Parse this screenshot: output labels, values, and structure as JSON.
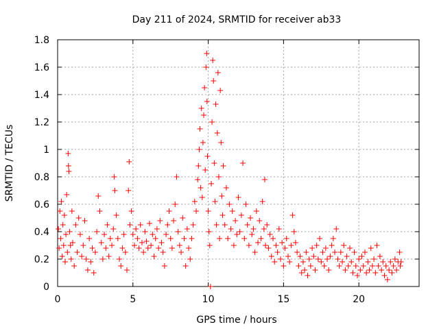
{
  "chart_data": {
    "type": "scatter",
    "title": "Day 211 of 2024, SRMTID for receiver ab33",
    "xlabel": "GPS time / hours",
    "ylabel": "SRMTID / TECUs",
    "xlim": [
      0,
      24
    ],
    "ylim": [
      0,
      1.8
    ],
    "xticks": [
      0,
      5,
      10,
      15,
      20
    ],
    "xtick_labels": [
      "0",
      "5",
      "10",
      "15",
      "20"
    ],
    "yticks": [
      0,
      0.2,
      0.4,
      0.6,
      0.8,
      1.0,
      1.2,
      1.4,
      1.6,
      1.8
    ],
    "ytick_labels": [
      "0",
      "0.2",
      "0.4",
      "0.6",
      "0.8",
      "1",
      "1.2",
      "1.4",
      "1.6",
      "1.8"
    ],
    "grid": true,
    "marker": "+",
    "series_color": "#ff0000",
    "series": [
      {
        "name": "SRMTID",
        "points": [
          [
            0.05,
            0.42
          ],
          [
            0.1,
            0.28
          ],
          [
            0.15,
            0.55
          ],
          [
            0.2,
            0.35
          ],
          [
            0.25,
            0.62
          ],
          [
            0.3,
            0.22
          ],
          [
            0.35,
            0.45
          ],
          [
            0.4,
            0.3
          ],
          [
            0.45,
            0.52
          ],
          [
            0.5,
            0.18
          ],
          [
            0.55,
            0.38
          ],
          [
            0.6,
            0.67
          ],
          [
            0.65,
            0.25
          ],
          [
            0.7,
            0.97
          ],
          [
            0.72,
            0.88
          ],
          [
            0.75,
            0.84
          ],
          [
            0.8,
            0.4
          ],
          [
            0.85,
            0.3
          ],
          [
            0.9,
            0.2
          ],
          [
            0.95,
            0.55
          ],
          [
            1.0,
            0.32
          ],
          [
            1.1,
            0.15
          ],
          [
            1.2,
            0.45
          ],
          [
            1.3,
            0.25
          ],
          [
            1.4,
            0.5
          ],
          [
            1.5,
            0.38
          ],
          [
            1.6,
            0.22
          ],
          [
            1.7,
            0.3
          ],
          [
            1.8,
            0.48
          ],
          [
            1.9,
            0.2
          ],
          [
            2.0,
            0.12
          ],
          [
            2.1,
            0.35
          ],
          [
            2.2,
            0.18
          ],
          [
            2.3,
            0.28
          ],
          [
            2.4,
            0.1
          ],
          [
            2.5,
            0.25
          ],
          [
            2.6,
            0.4
          ],
          [
            2.7,
            0.66
          ],
          [
            2.8,
            0.55
          ],
          [
            2.9,
            0.32
          ],
          [
            3.0,
            0.2
          ],
          [
            3.1,
            0.38
          ],
          [
            3.2,
            0.28
          ],
          [
            3.3,
            0.45
          ],
          [
            3.4,
            0.22
          ],
          [
            3.5,
            0.35
          ],
          [
            3.6,
            0.3
          ],
          [
            3.7,
            0.42
          ],
          [
            3.8,
            0.7
          ],
          [
            3.9,
            0.52
          ],
          [
            3.75,
            0.8
          ],
          [
            4.0,
            0.35
          ],
          [
            4.1,
            0.2
          ],
          [
            4.2,
            0.15
          ],
          [
            4.3,
            0.28
          ],
          [
            4.4,
            0.38
          ],
          [
            4.5,
            0.25
          ],
          [
            4.6,
            0.12
          ],
          [
            4.7,
            0.7
          ],
          [
            4.75,
            0.91
          ],
          [
            4.8,
            0.45
          ],
          [
            4.9,
            0.55
          ],
          [
            5.0,
            0.38
          ],
          [
            5.1,
            0.3
          ],
          [
            5.2,
            0.42
          ],
          [
            5.3,
            0.35
          ],
          [
            5.4,
            0.28
          ],
          [
            5.5,
            0.45
          ],
          [
            5.6,
            0.32
          ],
          [
            5.7,
            0.25
          ],
          [
            5.8,
            0.4
          ],
          [
            5.9,
            0.33
          ],
          [
            6.0,
            0.28
          ],
          [
            6.1,
            0.46
          ],
          [
            6.2,
            0.3
          ],
          [
            6.3,
            0.38
          ],
          [
            6.4,
            0.22
          ],
          [
            6.5,
            0.35
          ],
          [
            6.6,
            0.42
          ],
          [
            6.7,
            0.28
          ],
          [
            6.8,
            0.48
          ],
          [
            6.9,
            0.32
          ],
          [
            7.0,
            0.25
          ],
          [
            7.1,
            0.15
          ],
          [
            7.2,
            0.38
          ],
          [
            7.3,
            0.45
          ],
          [
            7.4,
            0.55
          ],
          [
            7.5,
            0.35
          ],
          [
            7.6,
            0.28
          ],
          [
            7.7,
            0.48
          ],
          [
            7.8,
            0.6
          ],
          [
            7.9,
            0.8
          ],
          [
            8.0,
            0.4
          ],
          [
            8.1,
            0.3
          ],
          [
            8.2,
            0.25
          ],
          [
            8.3,
            0.5
          ],
          [
            8.4,
            0.35
          ],
          [
            8.5,
            0.15
          ],
          [
            8.6,
            0.42
          ],
          [
            8.7,
            0.28
          ],
          [
            8.8,
            0.2
          ],
          [
            8.9,
            0.35
          ],
          [
            9.0,
            0.45
          ],
          [
            9.1,
            0.62
          ],
          [
            9.2,
            0.55
          ],
          [
            9.3,
            0.78
          ],
          [
            9.35,
            0.88
          ],
          [
            9.4,
            1.0
          ],
          [
            9.45,
            1.15
          ],
          [
            9.5,
            0.72
          ],
          [
            9.55,
            1.3
          ],
          [
            9.6,
            0.65
          ],
          [
            9.65,
            1.05
          ],
          [
            9.7,
            1.25
          ],
          [
            9.75,
            1.45
          ],
          [
            9.8,
            0.85
          ],
          [
            9.85,
            1.6
          ],
          [
            9.9,
            1.7
          ],
          [
            9.92,
            1.35
          ],
          [
            9.95,
            0.95
          ],
          [
            10.0,
            0.55
          ],
          [
            10.05,
            0.4
          ],
          [
            10.1,
            0.3
          ],
          [
            10.15,
            0.0
          ],
          [
            10.2,
            0.75
          ],
          [
            10.25,
            1.2
          ],
          [
            10.3,
            1.65
          ],
          [
            10.35,
            1.5
          ],
          [
            10.4,
            0.9
          ],
          [
            10.45,
            0.62
          ],
          [
            10.5,
            1.33
          ],
          [
            10.55,
            0.45
          ],
          [
            10.6,
            1.12
          ],
          [
            10.65,
            1.56
          ],
          [
            10.7,
            0.8
          ],
          [
            10.75,
            0.35
          ],
          [
            10.8,
            1.43
          ],
          [
            10.85,
            1.05
          ],
          [
            10.9,
            0.66
          ],
          [
            10.95,
            0.52
          ],
          [
            11.0,
            0.88
          ],
          [
            11.1,
            0.45
          ],
          [
            11.2,
            0.72
          ],
          [
            11.3,
            0.35
          ],
          [
            11.4,
            0.6
          ],
          [
            11.5,
            0.42
          ],
          [
            11.6,
            0.55
          ],
          [
            11.7,
            0.3
          ],
          [
            11.8,
            0.48
          ],
          [
            11.9,
            0.38
          ],
          [
            12.0,
            0.65
          ],
          [
            12.1,
            0.4
          ],
          [
            12.2,
            0.52
          ],
          [
            12.3,
            0.9
          ],
          [
            12.4,
            0.35
          ],
          [
            12.5,
            0.6
          ],
          [
            12.6,
            0.45
          ],
          [
            12.7,
            0.3
          ],
          [
            12.8,
            0.5
          ],
          [
            12.9,
            0.38
          ],
          [
            13.0,
            0.42
          ],
          [
            13.1,
            0.25
          ],
          [
            13.2,
            0.55
          ],
          [
            13.3,
            0.32
          ],
          [
            13.4,
            0.48
          ],
          [
            13.5,
            0.35
          ],
          [
            13.6,
            0.62
          ],
          [
            13.7,
            0.42
          ],
          [
            13.75,
            0.78
          ],
          [
            13.8,
            0.3
          ],
          [
            13.9,
            0.45
          ],
          [
            14.0,
            0.28
          ],
          [
            14.1,
            0.38
          ],
          [
            14.2,
            0.22
          ],
          [
            14.3,
            0.35
          ],
          [
            14.4,
            0.18
          ],
          [
            14.5,
            0.3
          ],
          [
            14.6,
            0.25
          ],
          [
            14.7,
            0.42
          ],
          [
            14.8,
            0.2
          ],
          [
            14.9,
            0.32
          ],
          [
            15.0,
            0.15
          ],
          [
            15.1,
            0.28
          ],
          [
            15.2,
            0.35
          ],
          [
            15.3,
            0.22
          ],
          [
            15.4,
            0.18
          ],
          [
            15.5,
            0.3
          ],
          [
            15.6,
            0.52
          ],
          [
            15.7,
            0.4
          ],
          [
            15.8,
            0.32
          ],
          [
            15.9,
            0.25
          ],
          [
            16.0,
            0.15
          ],
          [
            16.1,
            0.22
          ],
          [
            16.2,
            0.1
          ],
          [
            16.3,
            0.18
          ],
          [
            16.4,
            0.12
          ],
          [
            16.5,
            0.25
          ],
          [
            16.6,
            0.08
          ],
          [
            16.7,
            0.2
          ],
          [
            16.8,
            0.15
          ],
          [
            16.9,
            0.28
          ],
          [
            17.0,
            0.22
          ],
          [
            17.1,
            0.12
          ],
          [
            17.2,
            0.3
          ],
          [
            17.3,
            0.2
          ],
          [
            17.4,
            0.35
          ],
          [
            17.5,
            0.18
          ],
          [
            17.6,
            0.25
          ],
          [
            17.7,
            0.15
          ],
          [
            17.8,
            0.28
          ],
          [
            17.9,
            0.2
          ],
          [
            18.0,
            0.12
          ],
          [
            18.1,
            0.22
          ],
          [
            18.2,
            0.3
          ],
          [
            18.3,
            0.35
          ],
          [
            18.4,
            0.25
          ],
          [
            18.5,
            0.42
          ],
          [
            18.6,
            0.2
          ],
          [
            18.7,
            0.15
          ],
          [
            18.8,
            0.25
          ],
          [
            18.9,
            0.18
          ],
          [
            19.0,
            0.3
          ],
          [
            19.1,
            0.12
          ],
          [
            19.2,
            0.22
          ],
          [
            19.3,
            0.15
          ],
          [
            19.4,
            0.28
          ],
          [
            19.5,
            0.18
          ],
          [
            19.6,
            0.1
          ],
          [
            19.7,
            0.25
          ],
          [
            19.8,
            0.15
          ],
          [
            19.9,
            0.08
          ],
          [
            20.0,
            0.2
          ],
          [
            20.1,
            0.12
          ],
          [
            20.2,
            0.22
          ],
          [
            20.3,
            0.15
          ],
          [
            20.4,
            0.25
          ],
          [
            20.5,
            0.1
          ],
          [
            20.6,
            0.18
          ],
          [
            20.7,
            0.12
          ],
          [
            20.8,
            0.28
          ],
          [
            20.9,
            0.15
          ],
          [
            21.0,
            0.2
          ],
          [
            21.1,
            0.1
          ],
          [
            21.2,
            0.3
          ],
          [
            21.3,
            0.15
          ],
          [
            21.4,
            0.22
          ],
          [
            21.5,
            0.12
          ],
          [
            21.6,
            0.18
          ],
          [
            21.7,
            0.08
          ],
          [
            21.8,
            0.15
          ],
          [
            21.9,
            0.05
          ],
          [
            22.0,
            0.12
          ],
          [
            22.1,
            0.18
          ],
          [
            22.2,
            0.1
          ],
          [
            22.3,
            0.15
          ],
          [
            22.4,
            0.2
          ],
          [
            22.5,
            0.12
          ],
          [
            22.6,
            0.18
          ],
          [
            22.7,
            0.25
          ],
          [
            22.75,
            0.15
          ],
          [
            22.8,
            0.18
          ]
        ]
      }
    ]
  }
}
